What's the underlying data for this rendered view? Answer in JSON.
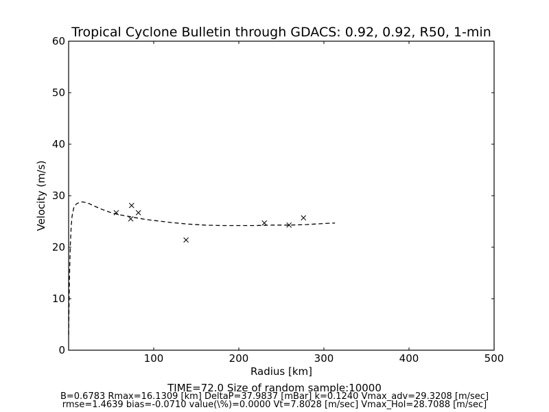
{
  "chart_data": {
    "type": "scatter",
    "title": "Tropical Cyclone Bulletin through GDACS: 0.92, 0.92, R50, 1-min",
    "xlabel": "Radius [km]",
    "ylabel": "Velocity (m/s)",
    "xlim": [
      0,
      500
    ],
    "ylim": [
      0,
      60
    ],
    "xticks": [
      100,
      200,
      300,
      400,
      500
    ],
    "yticks": [
      0,
      10,
      20,
      30,
      40,
      50,
      60
    ],
    "grid": false,
    "legend": "none",
    "series": [
      {
        "style": "dashed-line",
        "color": "#000000",
        "x": [
          0,
          1,
          2,
          3,
          4,
          6,
          8,
          10,
          13,
          16,
          20,
          25,
          30,
          40,
          50,
          60,
          70,
          80,
          90,
          100,
          120,
          140,
          160,
          180,
          200,
          220,
          240,
          260,
          280,
          300,
          313
        ],
        "y": [
          3.0,
          14.0,
          20.5,
          24.0,
          26.0,
          27.6,
          28.2,
          28.5,
          28.7,
          28.8,
          28.7,
          28.4,
          28.0,
          27.3,
          26.7,
          26.3,
          26.0,
          25.7,
          25.4,
          25.2,
          24.8,
          24.5,
          24.3,
          24.2,
          24.2,
          24.2,
          24.3,
          24.3,
          24.4,
          24.6,
          24.7
        ]
      },
      {
        "style": "x-marker",
        "color": "#000000",
        "x": [
          56,
          73,
          74,
          82,
          138,
          230,
          259,
          276
        ],
        "y": [
          26.7,
          25.5,
          28.1,
          26.7,
          21.4,
          24.7,
          24.3,
          25.7
        ]
      }
    ]
  },
  "captions": {
    "time": "TIME=72.0      Size of random sample:10000",
    "params_line1": "B=0.6783 Rmax=16.1309 [km]  DeltaP=37.9837 [mBar] k=0.1240 Vmax_adv=29.3208 [m/sec]",
    "params_line2": "rmse=1.4639 bias=-0.0710 value(\\%)=0.0000 Vt=7.8028 [m/sec] Vmax_Hol=28.7088 [m/sec]"
  }
}
